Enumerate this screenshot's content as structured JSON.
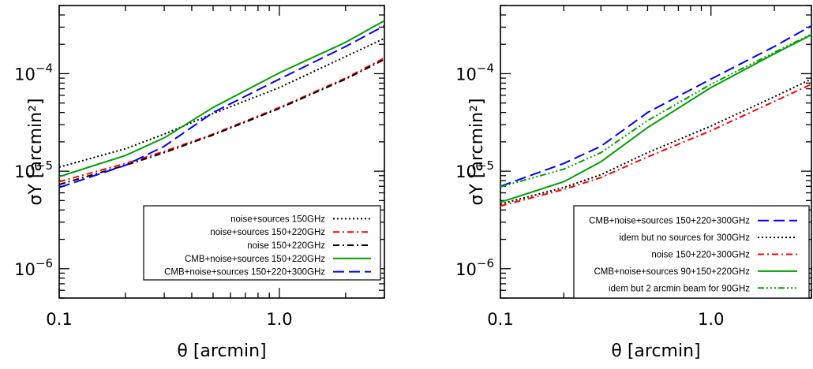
{
  "chart_data": [
    {
      "type": "line",
      "panel": "left",
      "xlabel": "θ [arcmin]",
      "ylabel": "σY [arcmin²]",
      "xscale": "log",
      "yscale": "log",
      "xlim": [
        0.1,
        3.0
      ],
      "ylim": [
        5e-07,
        0.0005
      ],
      "x_ticks": [
        {
          "value": 0.1,
          "label": "0.1"
        },
        {
          "value": 1.0,
          "label": "1.0"
        }
      ],
      "y_ticks": [
        {
          "value": 1e-06,
          "base": "10",
          "exp": "−6"
        },
        {
          "value": 1e-05,
          "base": "10",
          "exp": "−5"
        },
        {
          "value": 0.0001,
          "base": "10",
          "exp": "−4"
        }
      ],
      "legend_position": "bottom-right",
      "series": [
        {
          "name": "noise+sources 150GHz",
          "color": "#000000",
          "dash": "dotted",
          "x": [
            0.1,
            0.2,
            0.3,
            0.5,
            1.0,
            2.0,
            3.0
          ],
          "y": [
            1.1e-05,
            1.7e-05,
            2.4e-05,
            3.9e-05,
            7.2e-05,
            0.00015,
            0.00023
          ]
        },
        {
          "name": "noise+sources 150+220GHz",
          "color": "#ff0000",
          "dash": "dashdot",
          "x": [
            0.1,
            0.2,
            0.3,
            0.5,
            1.0,
            2.0,
            3.0
          ],
          "y": [
            7.8e-06,
            1.2e-05,
            1.6e-05,
            2.4e-05,
            4.5e-05,
            9e-05,
            0.000145
          ]
        },
        {
          "name": "noise 150+220GHz",
          "color": "#000000",
          "dash": "dashdot",
          "x": [
            0.1,
            0.2,
            0.3,
            0.5,
            1.0,
            2.0,
            3.0
          ],
          "y": [
            7.3e-06,
            1.15e-05,
            1.55e-05,
            2.35e-05,
            4.4e-05,
            8.8e-05,
            0.00014
          ]
        },
        {
          "name": "CMB+noise+sources 150+220GHz",
          "color": "#00a000",
          "dash": "solid",
          "x": [
            0.1,
            0.2,
            0.3,
            0.5,
            1.0,
            2.0,
            3.0
          ],
          "y": [
            8.8e-06,
            1.45e-05,
            2.2e-05,
            4.5e-05,
            0.000102,
            0.00021,
            0.00035
          ]
        },
        {
          "name": "CMB+noise+sources 150+220+300GHz",
          "color": "#0000ff",
          "dash": "dashed",
          "x": [
            0.1,
            0.2,
            0.3,
            0.5,
            1.0,
            2.0,
            3.0
          ],
          "y": [
            6.8e-06,
            1.15e-05,
            1.8e-05,
            4e-05,
            8.8e-05,
            0.00019,
            0.00031
          ]
        }
      ]
    },
    {
      "type": "line",
      "panel": "right",
      "xlabel": "θ [arcmin]",
      "ylabel": "σY [arcmin²]",
      "xscale": "log",
      "yscale": "log",
      "xlim": [
        0.1,
        3.0
      ],
      "ylim": [
        5e-07,
        0.0005
      ],
      "x_ticks": [
        {
          "value": 0.1,
          "label": "0.1"
        },
        {
          "value": 1.0,
          "label": "1.0"
        }
      ],
      "y_ticks": [
        {
          "value": 1e-06,
          "base": "10",
          "exp": "−6"
        },
        {
          "value": 1e-05,
          "base": "10",
          "exp": "−5"
        },
        {
          "value": 0.0001,
          "base": "10",
          "exp": "−4"
        }
      ],
      "legend_position": "bottom-right",
      "series": [
        {
          "name": "CMB+noise+sources 150+220+300GHz",
          "color": "#0000ff",
          "dash": "dashed",
          "x": [
            0.1,
            0.2,
            0.3,
            0.5,
            1.0,
            2.0,
            3.0
          ],
          "y": [
            7e-06,
            1.2e-05,
            1.8e-05,
            4e-05,
            8.8e-05,
            0.00019,
            0.00031
          ]
        },
        {
          "name": "idem but no sources for 300GHz",
          "color": "#000000",
          "dash": "dotted",
          "x": [
            0.1,
            0.2,
            0.3,
            0.5,
            1.0,
            2.0,
            3.0
          ],
          "y": [
            4.6e-06,
            6.8e-06,
            9.2e-06,
            1.55e-05,
            2.9e-05,
            5.8e-05,
            8.8e-05
          ]
        },
        {
          "name": "noise 150+220+300GHz",
          "color": "#ff0000",
          "dash": "dashdot",
          "x": [
            0.1,
            0.2,
            0.3,
            0.5,
            1.0,
            2.0,
            3.0
          ],
          "y": [
            4.4e-06,
            6.5e-06,
            8.6e-06,
            1.4e-05,
            2.6e-05,
            5.2e-05,
            7.8e-05
          ]
        },
        {
          "name": "CMB+noise+sources 90+150+220GHz",
          "color": "#00a000",
          "dash": "solid",
          "x": [
            0.1,
            0.2,
            0.3,
            0.5,
            1.0,
            2.0,
            3.0
          ],
          "y": [
            4.8e-06,
            7.8e-06,
            1.25e-05,
            2.8e-05,
            7.2e-05,
            0.00016,
            0.00025
          ]
        },
        {
          "name": "idem but 2 arcmin beam for 90GHz",
          "color": "#00a000",
          "dash": "dashdotdotdot",
          "x": [
            0.1,
            0.2,
            0.3,
            0.5,
            1.0,
            2.0,
            3.0
          ],
          "y": [
            6.9e-06,
            1.05e-05,
            1.55e-05,
            3.3e-05,
            7.8e-05,
            0.000165,
            0.000255
          ]
        }
      ]
    }
  ]
}
